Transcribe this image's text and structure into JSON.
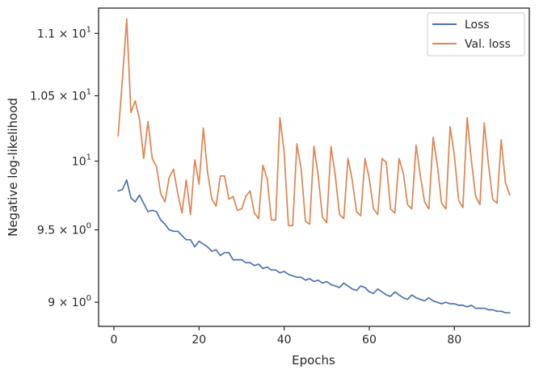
{
  "chart_data": {
    "type": "line",
    "title": "",
    "xlabel": "Epochs",
    "ylabel": "Negative log-likelihood",
    "xlim": [
      -3.6,
      97.6
    ],
    "ylim": [
      8.84,
      11.21
    ],
    "yscale": "log",
    "grid": false,
    "legend_position": "top-right",
    "x_ticks": [
      {
        "value": 0,
        "label": "0"
      },
      {
        "value": 20,
        "label": "20"
      },
      {
        "value": 40,
        "label": "40"
      },
      {
        "value": 60,
        "label": "60"
      },
      {
        "value": 80,
        "label": "80"
      }
    ],
    "y_ticks": [
      {
        "value": 9.0,
        "label_base": "9 × 10",
        "label_exp": "0"
      },
      {
        "value": 9.5,
        "label_base": "9.5 × 10",
        "label_exp": "0"
      },
      {
        "value": 10.0,
        "label_base": "10",
        "label_exp": "1"
      },
      {
        "value": 10.5,
        "label_base": "1.05 × 10",
        "label_exp": "1"
      },
      {
        "value": 11.0,
        "label_base": "1.1 × 10",
        "label_exp": "1"
      }
    ],
    "series": [
      {
        "name": "Loss",
        "color": "#4c72b0",
        "x": [
          1,
          2,
          3,
          4,
          5,
          6,
          7,
          8,
          9,
          10,
          11,
          12,
          13,
          14,
          15,
          16,
          17,
          18,
          19,
          20,
          21,
          22,
          23,
          24,
          25,
          26,
          27,
          28,
          29,
          30,
          31,
          32,
          33,
          34,
          35,
          36,
          37,
          38,
          39,
          40,
          41,
          42,
          43,
          44,
          45,
          46,
          47,
          48,
          49,
          50,
          51,
          52,
          53,
          54,
          55,
          56,
          57,
          58,
          59,
          60,
          61,
          62,
          63,
          64,
          65,
          66,
          67,
          68,
          69,
          70,
          71,
          72,
          73,
          74,
          75,
          76,
          77,
          78,
          79,
          80,
          81,
          82,
          83,
          84,
          85,
          86,
          87,
          88,
          89,
          90,
          91,
          92,
          93
        ],
        "values": [
          9.78,
          9.79,
          9.86,
          9.73,
          9.7,
          9.75,
          9.69,
          9.63,
          9.64,
          9.63,
          9.57,
          9.54,
          9.5,
          9.49,
          9.49,
          9.46,
          9.43,
          9.43,
          9.38,
          9.42,
          9.4,
          9.38,
          9.35,
          9.36,
          9.32,
          9.34,
          9.34,
          9.29,
          9.29,
          9.29,
          9.27,
          9.27,
          9.25,
          9.26,
          9.23,
          9.24,
          9.22,
          9.22,
          9.2,
          9.21,
          9.19,
          9.18,
          9.17,
          9.17,
          9.15,
          9.16,
          9.14,
          9.15,
          9.13,
          9.14,
          9.12,
          9.11,
          9.1,
          9.13,
          9.11,
          9.09,
          9.08,
          9.11,
          9.1,
          9.07,
          9.06,
          9.09,
          9.07,
          9.05,
          9.04,
          9.07,
          9.05,
          9.03,
          9.02,
          9.05,
          9.03,
          9.02,
          9.01,
          9.03,
          9.01,
          9.0,
          8.99,
          9.0,
          8.99,
          8.99,
          8.98,
          8.98,
          8.97,
          8.98,
          8.96,
          8.96,
          8.96,
          8.95,
          8.95,
          8.94,
          8.94,
          8.93,
          8.93
        ]
      },
      {
        "name": "Val. loss",
        "color": "#dd8452",
        "x": [
          1,
          2,
          3,
          4,
          5,
          6,
          7,
          8,
          9,
          10,
          11,
          12,
          13,
          14,
          15,
          16,
          17,
          18,
          19,
          20,
          21,
          22,
          23,
          24,
          25,
          26,
          27,
          28,
          29,
          30,
          31,
          32,
          33,
          34,
          35,
          36,
          37,
          38,
          39,
          40,
          41,
          42,
          43,
          44,
          45,
          46,
          47,
          48,
          49,
          50,
          51,
          52,
          53,
          54,
          55,
          56,
          57,
          58,
          59,
          60,
          61,
          62,
          63,
          64,
          65,
          66,
          67,
          68,
          69,
          70,
          71,
          72,
          73,
          74,
          75,
          76,
          77,
          78,
          79,
          80,
          81,
          82,
          83,
          84,
          85,
          86,
          87,
          88,
          89,
          90,
          91,
          92,
          93
        ],
        "values": [
          10.19,
          10.63,
          11.12,
          10.37,
          10.46,
          10.32,
          10.02,
          10.3,
          10.02,
          9.96,
          9.76,
          9.7,
          9.88,
          9.94,
          9.76,
          9.62,
          9.86,
          9.61,
          10.01,
          9.83,
          10.25,
          9.92,
          9.72,
          9.67,
          9.89,
          9.89,
          9.72,
          9.74,
          9.64,
          9.65,
          9.74,
          9.78,
          9.62,
          9.58,
          9.97,
          9.87,
          9.57,
          9.57,
          10.33,
          10.07,
          9.53,
          9.53,
          10.13,
          9.94,
          9.56,
          9.54,
          10.11,
          9.89,
          9.59,
          9.55,
          10.11,
          9.9,
          9.61,
          9.58,
          10.02,
          9.86,
          9.63,
          9.6,
          10.02,
          9.87,
          9.65,
          9.61,
          10.02,
          9.99,
          9.65,
          9.62,
          10.02,
          9.91,
          9.68,
          9.65,
          10.12,
          9.89,
          9.7,
          9.65,
          10.18,
          9.97,
          9.69,
          9.65,
          10.26,
          10.04,
          9.71,
          9.66,
          10.33,
          10.0,
          9.74,
          9.68,
          10.29,
          9.98,
          9.72,
          9.69,
          10.16,
          9.84,
          9.75
        ]
      }
    ]
  }
}
